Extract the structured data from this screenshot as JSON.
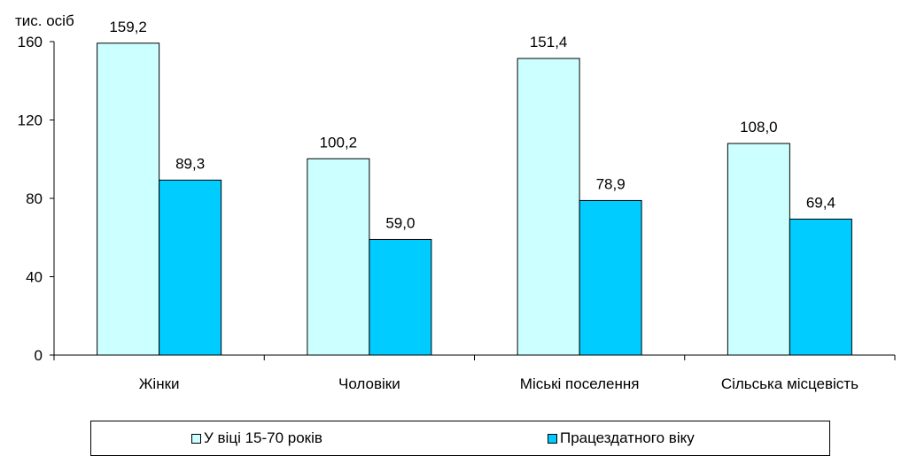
{
  "chart_data": {
    "type": "bar",
    "title": "",
    "ylabel": "тис. осіб",
    "xlabel": "",
    "categories": [
      "Жінки",
      "Чоловіки",
      "Міські поселення",
      "Сільська місцевість"
    ],
    "series": [
      {
        "name": "У віці 15-70 років",
        "values": [
          159.2,
          100.2,
          151.4,
          108.0
        ],
        "labels": [
          "159,2",
          "100,2",
          "151,4",
          "108,0"
        ],
        "color": "#ccffff"
      },
      {
        "name": "Працездатного віку",
        "values": [
          89.3,
          59.0,
          78.9,
          69.4
        ],
        "labels": [
          "89,3",
          "59,0",
          "78,9",
          "69,4"
        ],
        "color": "#00ccff"
      }
    ],
    "ylim": [
      0,
      160
    ],
    "yticks": [
      0,
      40,
      80,
      120,
      160
    ],
    "grid": false,
    "legend_position": "bottom"
  }
}
